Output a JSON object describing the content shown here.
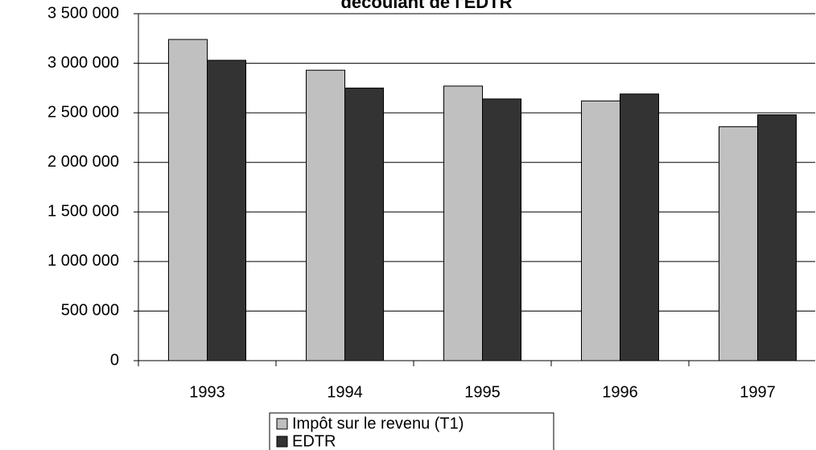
{
  "chart_data": {
    "type": "bar",
    "title": "découlant de l'EDTR",
    "categories": [
      "1993",
      "1994",
      "1995",
      "1996",
      "1997"
    ],
    "series": [
      {
        "name": "Impôt sur le revenu (T1)",
        "color": "#c0c0c0",
        "values": [
          3240000,
          2930000,
          2770000,
          2620000,
          2360000
        ]
      },
      {
        "name": "EDTR",
        "color": "#333333",
        "values": [
          3030000,
          2750000,
          2640000,
          2690000,
          2480000
        ]
      }
    ],
    "ylim": [
      0,
      3500000
    ],
    "yticks": [
      0,
      {
        "value": 500000,
        "label": "500 000"
      },
      {
        "value": 1000000,
        "label": "1 000 000"
      },
      {
        "value": 1500000,
        "label": "1 500 000"
      },
      {
        "value": 2000000,
        "label": "2 000 000"
      },
      {
        "value": 2500000,
        "label": "2 500 000"
      },
      {
        "value": 3000000,
        "label": "3 000 000"
      },
      {
        "value": 3500000,
        "label": "3 500 000"
      }
    ],
    "grid": true,
    "legend": "bottom"
  }
}
